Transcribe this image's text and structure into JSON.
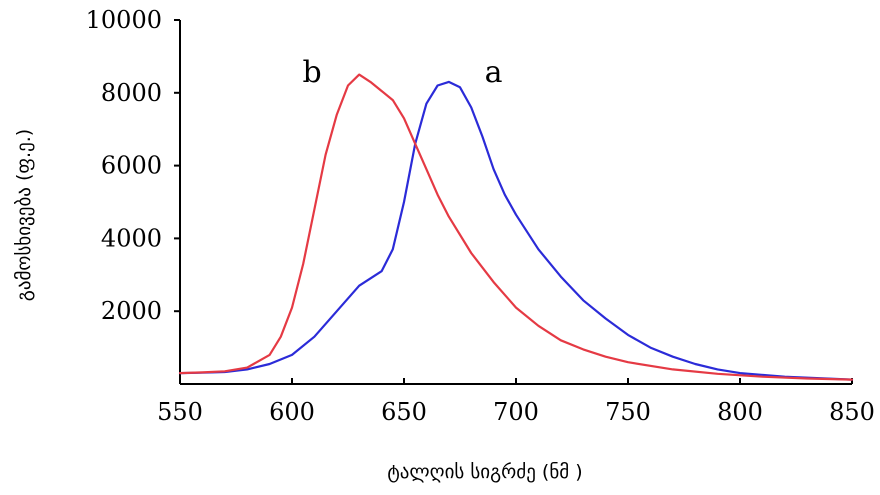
{
  "chart_data": {
    "type": "line",
    "title": "",
    "xlabel": "ტალღის სიგრძე  (ნმ )",
    "ylabel": "გამოსხივება (ფ.ე.)",
    "xlim": [
      550,
      850
    ],
    "ylim": [
      0,
      10000
    ],
    "xticks": [
      550,
      600,
      650,
      700,
      750,
      800,
      850
    ],
    "yticks": [
      2000,
      4000,
      6000,
      8000,
      10000
    ],
    "grid": false,
    "legend": "none",
    "series": [
      {
        "name": "a",
        "color": "#2b2bd8",
        "x": [
          550,
          560,
          570,
          580,
          590,
          600,
          610,
          620,
          630,
          635,
          640,
          645,
          650,
          655,
          660,
          665,
          670,
          675,
          680,
          685,
          690,
          695,
          700,
          710,
          720,
          730,
          740,
          750,
          760,
          770,
          780,
          790,
          800,
          820,
          850
        ],
        "y": [
          300,
          310,
          330,
          400,
          550,
          800,
          1300,
          2000,
          2700,
          2900,
          3100,
          3700,
          5000,
          6600,
          7700,
          8200,
          8300,
          8150,
          7600,
          6800,
          5900,
          5200,
          4650,
          3700,
          2950,
          2300,
          1800,
          1350,
          1000,
          750,
          550,
          400,
          300,
          200,
          120
        ]
      },
      {
        "name": "b",
        "color": "#e53a44",
        "x": [
          550,
          560,
          570,
          580,
          590,
          595,
          600,
          605,
          610,
          615,
          620,
          625,
          630,
          635,
          640,
          645,
          650,
          655,
          660,
          665,
          670,
          680,
          690,
          700,
          710,
          720,
          730,
          740,
          750,
          770,
          790,
          810,
          830,
          850
        ],
        "y": [
          300,
          320,
          350,
          450,
          800,
          1300,
          2100,
          3300,
          4800,
          6300,
          7400,
          8200,
          8500,
          8300,
          8050,
          7800,
          7300,
          6600,
          5900,
          5200,
          4600,
          3600,
          2800,
          2100,
          1600,
          1200,
          950,
          750,
          600,
          400,
          280,
          200,
          150,
          120
        ]
      }
    ],
    "annotations": [
      {
        "text": "a",
        "x": 690,
        "y": 8300
      },
      {
        "text": "b",
        "x": 609,
        "y": 8300
      }
    ]
  }
}
